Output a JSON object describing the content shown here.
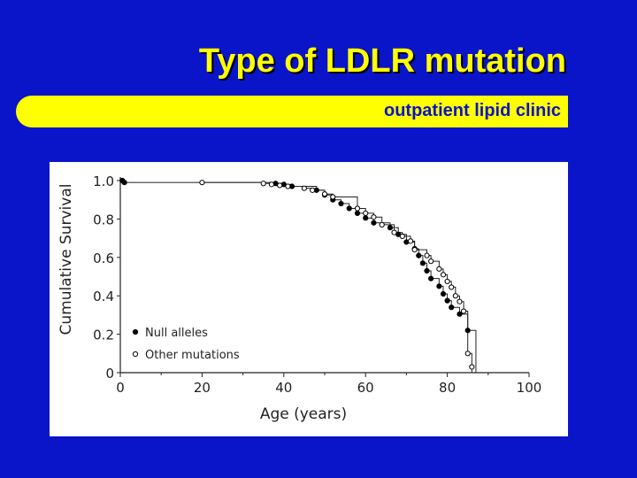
{
  "header": {
    "title": "Type of LDLR mutation",
    "subtitle": "outpatient lipid clinic"
  },
  "colors": {
    "background": "#0a14c8",
    "title": "#ffff00",
    "subtitle_bar": "#ffff00",
    "subtitle_text": "#0a14c8",
    "null_alleles": "#000000",
    "other_mutations": "#ffffff"
  },
  "chart_data": {
    "type": "line",
    "title": "",
    "xlabel": "Age (years)",
    "ylabel": "Cumulative Survival",
    "xlim": [
      0,
      100
    ],
    "ylim": [
      0,
      1.0
    ],
    "x_ticks": [
      0,
      20,
      40,
      60,
      80,
      100
    ],
    "x_tick_labels": [
      "0",
      "20",
      "40",
      "60",
      "80",
      "100"
    ],
    "y_ticks": [
      0,
      0.2,
      0.4,
      0.6,
      0.8,
      1.0
    ],
    "y_tick_labels": [
      "0",
      "0.2",
      "0.4",
      "0.6",
      "0.8",
      "1.0"
    ],
    "grid": false,
    "legend_position": "bottom-left",
    "step": true,
    "series": [
      {
        "name": "Null alleles",
        "marker": "filled-circle",
        "x": [
          0.5,
          1,
          38,
          40,
          42,
          48,
          50,
          52,
          54,
          56,
          58,
          60,
          62,
          66,
          68,
          70,
          72,
          73,
          74,
          75,
          76,
          78,
          79,
          80,
          81,
          83,
          85
        ],
        "y": [
          1.0,
          0.99,
          0.985,
          0.98,
          0.97,
          0.95,
          0.925,
          0.9,
          0.88,
          0.855,
          0.83,
          0.805,
          0.78,
          0.755,
          0.72,
          0.68,
          0.645,
          0.61,
          0.57,
          0.53,
          0.49,
          0.45,
          0.41,
          0.375,
          0.34,
          0.305,
          0.22
        ]
      },
      {
        "name": "Other mutations",
        "marker": "open-circle",
        "x": [
          20,
          35,
          37,
          39,
          41,
          45,
          47,
          50,
          52,
          58,
          60,
          62,
          64,
          67,
          69,
          71,
          72,
          75,
          76,
          78,
          79,
          80,
          81,
          82,
          83,
          84,
          85,
          86
        ],
        "y": [
          0.99,
          0.985,
          0.98,
          0.975,
          0.97,
          0.96,
          0.95,
          0.93,
          0.915,
          0.855,
          0.83,
          0.81,
          0.77,
          0.73,
          0.71,
          0.685,
          0.64,
          0.61,
          0.58,
          0.54,
          0.51,
          0.475,
          0.445,
          0.4,
          0.37,
          0.32,
          0.1,
          0.03
        ]
      }
    ]
  }
}
